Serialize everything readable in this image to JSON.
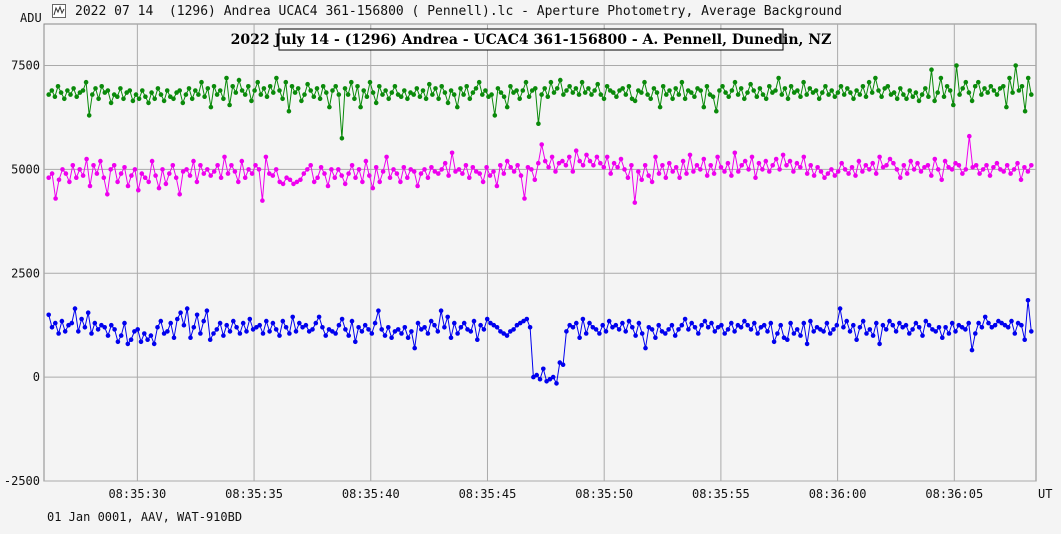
{
  "window": {
    "title": "2022 07 14  (1296) Andrea UCAC4 361-156800 ( Pennell).lc - Aperture Photometry, Average Background",
    "icon": "lightcurve-chart-icon"
  },
  "footer": {
    "text": "01 Jan 0001, AAV, WAT-910BD"
  },
  "chart_data": {
    "type": "line",
    "title": "2022 July 14 - (1296) Andrea - UCAC4 361-156800 - A. Pennell, Dunedin, NZ",
    "ylabel": "ADU",
    "xlabel": "UT",
    "ylim": [
      -2500,
      8500
    ],
    "xlim": [
      "08:35:26.0",
      "08:36:08.5"
    ],
    "yticks": [
      "7500",
      "5000",
      "2500",
      "0",
      "-2500"
    ],
    "xticks": [
      "08:35:30",
      "08:35:35",
      "08:35:40",
      "08:35:45",
      "08:35:50",
      "08:35:55",
      "08:36:00",
      "08:36:05"
    ],
    "grid": true,
    "series": [
      {
        "color": "#0a8a0a",
        "values": [
          6800,
          6900,
          6750,
          7000,
          6850,
          6700,
          6900,
          6800,
          6950,
          6750,
          6850,
          6900,
          7100,
          6300,
          6800,
          6950,
          6700,
          7000,
          6850,
          6900,
          6600,
          6800,
          6750,
          6950,
          6700,
          6850,
          6900,
          6650,
          6800,
          6700,
          6900,
          6750,
          6600,
          6850,
          6700,
          6950,
          6800,
          6650,
          6900,
          6750,
          6700,
          6850,
          6900,
          6600,
          6800,
          6950,
          6700,
          6900,
          6800,
          7100,
          6750,
          6950,
          6500,
          7000,
          6800,
          6900,
          6700,
          7200,
          6550,
          7000,
          6850,
          7150,
          6900,
          6800,
          7000,
          6650,
          6900,
          7100,
          6800,
          6950,
          6750,
          7000,
          6850,
          7200,
          6900,
          6700,
          7100,
          6400,
          7000,
          6850,
          6950,
          6650,
          6800,
          7050,
          6900,
          6750,
          6950,
          6700,
          7000,
          6850,
          6500,
          6900,
          7000,
          6800,
          5750,
          6950,
          6800,
          7100,
          6700,
          7000,
          6500,
          6900,
          6750,
          7100,
          6850,
          6600,
          7000,
          6800,
          6900,
          6700,
          6850,
          7000,
          6800,
          6750,
          6900,
          6700,
          6850,
          6800,
          6950,
          6750,
          6900,
          6700,
          7050,
          6800,
          6950,
          6700,
          7000,
          6850,
          6600,
          6900,
          6800,
          6500,
          6950,
          6800,
          7000,
          6700,
          6850,
          6950,
          7100,
          6800,
          6900,
          6750,
          6800,
          6300,
          6950,
          6850,
          6750,
          6500,
          7000,
          6850,
          6900,
          6700,
          6900,
          7100,
          6750,
          6900,
          6950,
          6100,
          6800,
          6950,
          6750,
          7100,
          6850,
          6950,
          7150,
          6800,
          6900,
          7000,
          6850,
          6950,
          6800,
          7100,
          6850,
          6950,
          6800,
          6900,
          7050,
          6800,
          6700,
          7000,
          6900,
          6850,
          6750,
          6900,
          6950,
          6800,
          7000,
          6700,
          6650,
          6900,
          6850,
          7100,
          6800,
          6700,
          6950,
          6850,
          6500,
          7000,
          6800,
          6900,
          6700,
          6950,
          6800,
          7100,
          6700,
          6900,
          6850,
          6750,
          6950,
          6900,
          6500,
          7000,
          6800,
          6750,
          6400,
          6900,
          7000,
          6850,
          6750,
          6900,
          7100,
          6800,
          6950,
          6700,
          6850,
          7050,
          6900,
          6750,
          6950,
          6800,
          6700,
          7000,
          6850,
          6900,
          7200,
          6800,
          6950,
          6700,
          7000,
          6850,
          6900,
          6750,
          7100,
          6800,
          6950,
          6850,
          6900,
          6700,
          6850,
          7000,
          6800,
          6900,
          6750,
          6850,
          7000,
          6800,
          6950,
          6850,
          6700,
          6900,
          6800,
          7000,
          6750,
          7100,
          6850,
          7200,
          6900,
          6750,
          6950,
          7000,
          6800,
          6850,
          6700,
          6950,
          6800,
          6700,
          6900,
          6750,
          6850,
          6650,
          6800,
          6950,
          6750,
          7400,
          6650,
          6850,
          7200,
          6750,
          7000,
          6900,
          6550,
          7500,
          6800,
          6950,
          7100,
          6850,
          6650,
          7000,
          7100,
          6800,
          6950,
          6850,
          7000,
          6900,
          6800,
          6950,
          7000,
          6500,
          7200,
          6850,
          7500,
          6900,
          7000,
          6400,
          7200,
          6800
        ]
      },
      {
        "color": "#ee00ee",
        "values": [
          4800,
          4900,
          4300,
          4750,
          5000,
          4900,
          4700,
          5100,
          4800,
          5000,
          4850,
          5250,
          4600,
          5100,
          4900,
          5200,
          4800,
          4400,
          5000,
          5100,
          4700,
          4900,
          5050,
          4600,
          4850,
          5000,
          4500,
          4900,
          4800,
          4700,
          5200,
          4850,
          4550,
          5000,
          4650,
          4900,
          5100,
          4800,
          4400,
          4950,
          5000,
          4850,
          5200,
          4700,
          5100,
          4900,
          5000,
          4850,
          4950,
          5100,
          4800,
          5300,
          4900,
          5100,
          4950,
          4700,
          5200,
          4800,
          5000,
          4900,
          5100,
          5000,
          4250,
          5300,
          4900,
          4850,
          5000,
          4700,
          4650,
          4800,
          4750,
          4650,
          4700,
          4750,
          4900,
          5000,
          5100,
          4700,
          4800,
          5050,
          4900,
          4600,
          5000,
          4800,
          5000,
          4850,
          4650,
          4900,
          5100,
          4800,
          5000,
          4700,
          5200,
          4850,
          4550,
          5050,
          4700,
          4950,
          5300,
          4800,
          5000,
          4900,
          4700,
          5050,
          4800,
          5000,
          4950,
          4600,
          4900,
          5000,
          4800,
          5050,
          4950,
          4900,
          5000,
          5150,
          4850,
          5400,
          4950,
          5000,
          4900,
          5100,
          4800,
          5050,
          4950,
          4900,
          4700,
          5050,
          4850,
          4950,
          4600,
          5100,
          4900,
          5200,
          5050,
          4950,
          5100,
          4850,
          4300,
          5050,
          5000,
          4750,
          5150,
          5600,
          5200,
          5050,
          5300,
          4950,
          5150,
          5200,
          5100,
          5300,
          4950,
          5450,
          5200,
          5100,
          5350,
          5200,
          5100,
          5300,
          5150,
          5050,
          5300,
          4900,
          5150,
          5050,
          5250,
          5000,
          4800,
          5100,
          4200,
          4950,
          4750,
          5100,
          4850,
          4700,
          5300,
          4900,
          5100,
          4800,
          5150,
          4950,
          5050,
          4800,
          5200,
          4900,
          5350,
          4950,
          5100,
          5000,
          5250,
          4850,
          5100,
          4900,
          5300,
          5050,
          4950,
          5150,
          4850,
          5400,
          4950,
          5100,
          5200,
          5000,
          5300,
          4800,
          5150,
          5000,
          5200,
          4950,
          5100,
          5250,
          5000,
          5350,
          5100,
          5200,
          4950,
          5150,
          5050,
          5300,
          4900,
          5100,
          4850,
          5050,
          4950,
          4800,
          4900,
          5000,
          4850,
          4950,
          5150,
          5000,
          4900,
          5050,
          4850,
          5200,
          4950,
          5100,
          5000,
          5150,
          4900,
          5300,
          5050,
          5100,
          5250,
          5150,
          5000,
          4800,
          5100,
          4900,
          5200,
          5000,
          5150,
          4950,
          5050,
          5100,
          4850,
          5250,
          5000,
          4750,
          5200,
          5050,
          5000,
          5150,
          5100,
          4900,
          5000,
          5800,
          5050,
          5100,
          4900,
          5000,
          5100,
          4850,
          5050,
          5150,
          5000,
          4950,
          5100,
          4900,
          5000,
          5150,
          4750,
          5050,
          4950,
          5100
        ]
      },
      {
        "color": "#0000ee",
        "values": [
          1500,
          1200,
          1300,
          1050,
          1350,
          1100,
          1250,
          1300,
          1650,
          1100,
          1400,
          1200,
          1550,
          1050,
          1300,
          1150,
          1250,
          1200,
          1000,
          1250,
          1150,
          850,
          1000,
          1300,
          800,
          900,
          1100,
          1150,
          850,
          1050,
          900,
          1000,
          800,
          1200,
          1350,
          1050,
          1100,
          1300,
          950,
          1400,
          1550,
          1250,
          1650,
          950,
          1200,
          1500,
          1050,
          1350,
          1600,
          900,
          1050,
          1150,
          1300,
          1000,
          1250,
          1100,
          1350,
          1200,
          1050,
          1300,
          1100,
          1400,
          1150,
          1200,
          1250,
          1050,
          1350,
          1100,
          1300,
          1150,
          1000,
          1350,
          1200,
          1050,
          1450,
          1100,
          1300,
          1200,
          1250,
          1100,
          1150,
          1300,
          1450,
          1200,
          1000,
          1150,
          1100,
          1050,
          1250,
          1400,
          1150,
          1000,
          1350,
          850,
          1200,
          1100,
          1250,
          1150,
          1050,
          1300,
          1600,
          1150,
          1000,
          1200,
          950,
          1100,
          1150,
          1050,
          1200,
          950,
          1100,
          700,
          1300,
          1150,
          1200,
          1050,
          1350,
          1250,
          1100,
          1600,
          1200,
          1450,
          950,
          1300,
          1050,
          1200,
          1300,
          1150,
          1100,
          1350,
          900,
          1250,
          1150,
          1400,
          1300,
          1250,
          1200,
          1100,
          1050,
          1000,
          1100,
          1150,
          1250,
          1300,
          1350,
          1400,
          1200,
          0,
          50,
          -50,
          200,
          -100,
          -50,
          0,
          -150,
          350,
          300,
          1100,
          1250,
          1200,
          1300,
          950,
          1400,
          1050,
          1300,
          1200,
          1150,
          1050,
          1250,
          1100,
          1350,
          1200,
          1250,
          1150,
          1300,
          1100,
          1350,
          1200,
          1000,
          1300,
          1050,
          700,
          1200,
          1150,
          950,
          1250,
          1100,
          1050,
          1150,
          1250,
          1000,
          1150,
          1250,
          1400,
          1150,
          1300,
          1200,
          1050,
          1250,
          1350,
          1200,
          1300,
          1100,
          1200,
          1250,
          1050,
          1150,
          1300,
          1100,
          1250,
          1200,
          1350,
          1250,
          1150,
          1300,
          1050,
          1200,
          1250,
          1100,
          1300,
          850,
          1050,
          1250,
          950,
          900,
          1300,
          1050,
          1150,
          1000,
          1300,
          800,
          1350,
          1100,
          1200,
          1150,
          1100,
          1300,
          1050,
          1150,
          1250,
          1650,
          1200,
          1350,
          1100,
          1250,
          900,
          1200,
          1350,
          1050,
          1150,
          1000,
          1300,
          800,
          1250,
          1150,
          1350,
          1250,
          1100,
          1300,
          1200,
          1250,
          1050,
          1150,
          1300,
          1200,
          1000,
          1350,
          1250,
          1150,
          1100,
          1200,
          950,
          1200,
          1050,
          1300,
          1100,
          1250,
          1200,
          1150,
          1300,
          650,
          1050,
          1300,
          1200,
          1450,
          1300,
          1200,
          1250,
          1350,
          1300,
          1250,
          1200,
          1350,
          1050,
          1300,
          1250,
          900,
          1850,
          1100
        ]
      }
    ]
  }
}
